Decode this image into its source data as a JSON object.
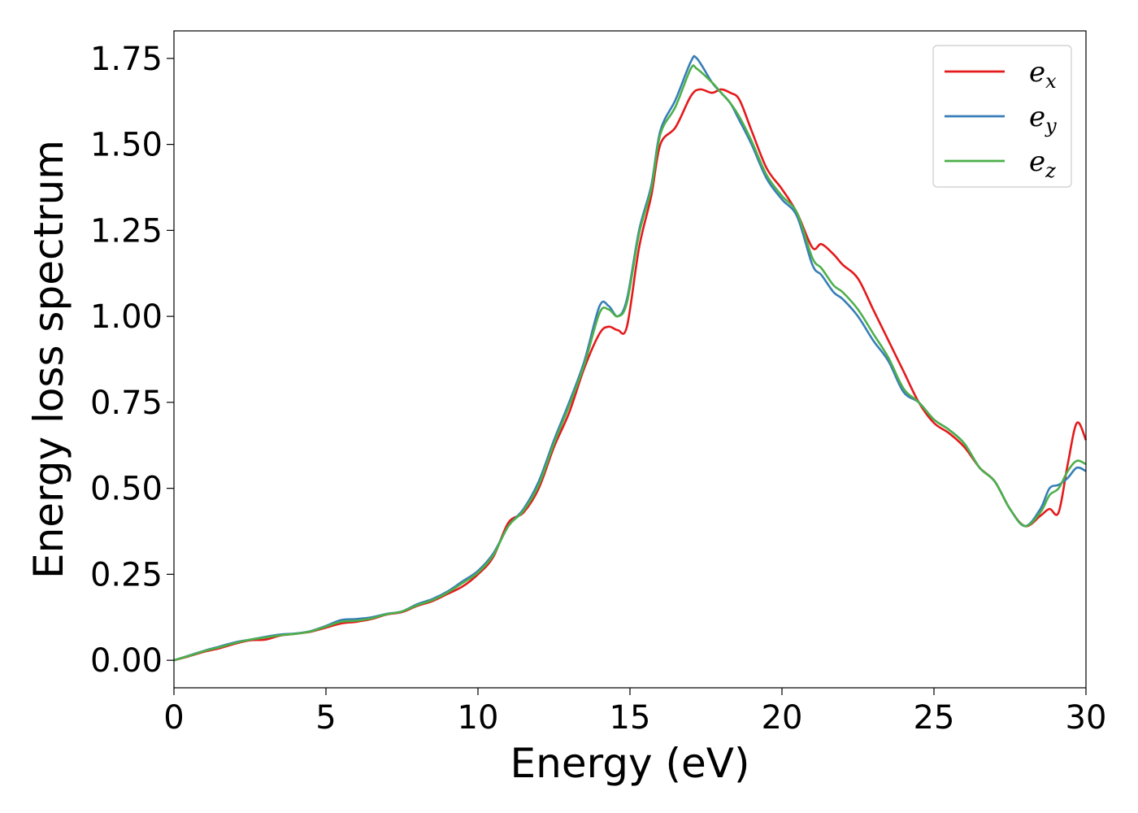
{
  "chart_data": {
    "type": "line",
    "xlabel": "Energy (eV)",
    "ylabel": "Energy loss spectrum",
    "xlim": [
      0,
      30
    ],
    "ylim": [
      -0.08,
      1.83
    ],
    "xticks": [
      "0",
      "5",
      "10",
      "15",
      "20",
      "25",
      "30"
    ],
    "yticks": [
      "0.00",
      "0.25",
      "0.50",
      "0.75",
      "1.00",
      "1.25",
      "1.50",
      "1.75"
    ],
    "grid": false,
    "legend_position": "top-right",
    "series": [
      {
        "name": "e",
        "subscript": "x",
        "color": "#e41a1c",
        "points": [
          [
            0,
            0
          ],
          [
            0.5,
            0.012
          ],
          [
            1,
            0.025
          ],
          [
            1.5,
            0.035
          ],
          [
            2,
            0.048
          ],
          [
            2.5,
            0.058
          ],
          [
            3,
            0.06
          ],
          [
            3.5,
            0.072
          ],
          [
            4,
            0.077
          ],
          [
            4.5,
            0.083
          ],
          [
            5,
            0.095
          ],
          [
            5.5,
            0.107
          ],
          [
            6,
            0.112
          ],
          [
            6.5,
            0.12
          ],
          [
            7,
            0.133
          ],
          [
            7.5,
            0.14
          ],
          [
            8,
            0.158
          ],
          [
            8.5,
            0.172
          ],
          [
            9,
            0.193
          ],
          [
            9.5,
            0.215
          ],
          [
            10,
            0.25
          ],
          [
            10.5,
            0.3
          ],
          [
            11,
            0.4
          ],
          [
            11.5,
            0.43
          ],
          [
            12,
            0.5
          ],
          [
            12.5,
            0.62
          ],
          [
            13,
            0.72
          ],
          [
            13.5,
            0.85
          ],
          [
            14,
            0.95
          ],
          [
            14.3,
            0.97
          ],
          [
            14.6,
            0.96
          ],
          [
            14.9,
            0.97
          ],
          [
            15.3,
            1.2
          ],
          [
            15.7,
            1.35
          ],
          [
            16,
            1.5
          ],
          [
            16.5,
            1.55
          ],
          [
            17,
            1.64
          ],
          [
            17.3,
            1.66
          ],
          [
            17.7,
            1.65
          ],
          [
            18,
            1.66
          ],
          [
            18.3,
            1.65
          ],
          [
            18.6,
            1.63
          ],
          [
            19,
            1.54
          ],
          [
            19.5,
            1.43
          ],
          [
            20,
            1.37
          ],
          [
            20.5,
            1.3
          ],
          [
            21,
            1.2
          ],
          [
            21.3,
            1.21
          ],
          [
            21.7,
            1.18
          ],
          [
            22,
            1.15
          ],
          [
            22.5,
            1.11
          ],
          [
            23,
            1.02
          ],
          [
            23.5,
            0.93
          ],
          [
            24,
            0.84
          ],
          [
            24.5,
            0.75
          ],
          [
            25,
            0.69
          ],
          [
            25.5,
            0.66
          ],
          [
            26,
            0.62
          ],
          [
            26.5,
            0.56
          ],
          [
            27,
            0.52
          ],
          [
            27.5,
            0.44
          ],
          [
            28,
            0.39
          ],
          [
            28.5,
            0.42
          ],
          [
            28.8,
            0.44
          ],
          [
            29.1,
            0.43
          ],
          [
            29.4,
            0.57
          ],
          [
            29.7,
            0.69
          ],
          [
            30,
            0.64
          ]
        ]
      },
      {
        "name": "e",
        "subscript": "y",
        "color": "#377eb8",
        "points": [
          [
            0,
            0
          ],
          [
            0.5,
            0.014
          ],
          [
            1,
            0.028
          ],
          [
            1.5,
            0.04
          ],
          [
            2,
            0.052
          ],
          [
            2.5,
            0.06
          ],
          [
            3,
            0.068
          ],
          [
            3.5,
            0.075
          ],
          [
            4,
            0.078
          ],
          [
            4.5,
            0.085
          ],
          [
            5,
            0.1
          ],
          [
            5.5,
            0.117
          ],
          [
            6,
            0.12
          ],
          [
            6.5,
            0.125
          ],
          [
            7,
            0.135
          ],
          [
            7.5,
            0.142
          ],
          [
            8,
            0.163
          ],
          [
            8.5,
            0.178
          ],
          [
            9,
            0.2
          ],
          [
            9.5,
            0.23
          ],
          [
            10,
            0.26
          ],
          [
            10.5,
            0.31
          ],
          [
            11,
            0.39
          ],
          [
            11.5,
            0.44
          ],
          [
            12,
            0.52
          ],
          [
            12.5,
            0.64
          ],
          [
            13,
            0.75
          ],
          [
            13.5,
            0.87
          ],
          [
            14,
            1.03
          ],
          [
            14.3,
            1.03
          ],
          [
            14.6,
            1.0
          ],
          [
            14.9,
            1.05
          ],
          [
            15.3,
            1.25
          ],
          [
            15.7,
            1.38
          ],
          [
            16,
            1.54
          ],
          [
            16.5,
            1.63
          ],
          [
            17,
            1.74
          ],
          [
            17.2,
            1.75
          ],
          [
            17.7,
            1.68
          ],
          [
            18,
            1.65
          ],
          [
            18.3,
            1.62
          ],
          [
            18.6,
            1.57
          ],
          [
            19,
            1.5
          ],
          [
            19.5,
            1.4
          ],
          [
            20,
            1.34
          ],
          [
            20.5,
            1.29
          ],
          [
            21,
            1.15
          ],
          [
            21.3,
            1.12
          ],
          [
            21.7,
            1.07
          ],
          [
            22,
            1.05
          ],
          [
            22.5,
            1.0
          ],
          [
            23,
            0.93
          ],
          [
            23.5,
            0.87
          ],
          [
            24,
            0.78
          ],
          [
            24.5,
            0.75
          ],
          [
            25,
            0.7
          ],
          [
            25.5,
            0.67
          ],
          [
            26,
            0.63
          ],
          [
            26.5,
            0.56
          ],
          [
            27,
            0.52
          ],
          [
            27.5,
            0.44
          ],
          [
            28,
            0.39
          ],
          [
            28.5,
            0.44
          ],
          [
            28.8,
            0.5
          ],
          [
            29.1,
            0.51
          ],
          [
            29.4,
            0.53
          ],
          [
            29.7,
            0.56
          ],
          [
            30,
            0.55
          ]
        ]
      },
      {
        "name": "e",
        "subscript": "z",
        "color": "#4daf4a",
        "points": [
          [
            0,
            0
          ],
          [
            0.5,
            0.013
          ],
          [
            1,
            0.027
          ],
          [
            1.5,
            0.038
          ],
          [
            2,
            0.05
          ],
          [
            2.5,
            0.06
          ],
          [
            3,
            0.066
          ],
          [
            3.5,
            0.073
          ],
          [
            4,
            0.077
          ],
          [
            4.5,
            0.084
          ],
          [
            5,
            0.098
          ],
          [
            5.5,
            0.112
          ],
          [
            6,
            0.115
          ],
          [
            6.5,
            0.122
          ],
          [
            7,
            0.134
          ],
          [
            7.5,
            0.142
          ],
          [
            8,
            0.16
          ],
          [
            8.5,
            0.175
          ],
          [
            9,
            0.197
          ],
          [
            9.5,
            0.225
          ],
          [
            10,
            0.255
          ],
          [
            10.5,
            0.305
          ],
          [
            11,
            0.39
          ],
          [
            11.5,
            0.435
          ],
          [
            12,
            0.51
          ],
          [
            12.5,
            0.63
          ],
          [
            13,
            0.74
          ],
          [
            13.5,
            0.86
          ],
          [
            14,
            1.01
          ],
          [
            14.3,
            1.02
          ],
          [
            14.6,
            1.0
          ],
          [
            14.9,
            1.04
          ],
          [
            15.3,
            1.24
          ],
          [
            15.7,
            1.37
          ],
          [
            16,
            1.53
          ],
          [
            16.5,
            1.61
          ],
          [
            17,
            1.72
          ],
          [
            17.2,
            1.72
          ],
          [
            17.7,
            1.68
          ],
          [
            18,
            1.65
          ],
          [
            18.3,
            1.62
          ],
          [
            18.6,
            1.58
          ],
          [
            19,
            1.51
          ],
          [
            19.5,
            1.41
          ],
          [
            20,
            1.35
          ],
          [
            20.5,
            1.3
          ],
          [
            21,
            1.17
          ],
          [
            21.3,
            1.14
          ],
          [
            21.7,
            1.09
          ],
          [
            22,
            1.07
          ],
          [
            22.5,
            1.02
          ],
          [
            23,
            0.95
          ],
          [
            23.5,
            0.88
          ],
          [
            24,
            0.79
          ],
          [
            24.5,
            0.75
          ],
          [
            25,
            0.7
          ],
          [
            25.5,
            0.67
          ],
          [
            26,
            0.63
          ],
          [
            26.5,
            0.56
          ],
          [
            27,
            0.52
          ],
          [
            27.5,
            0.44
          ],
          [
            28,
            0.39
          ],
          [
            28.5,
            0.43
          ],
          [
            28.8,
            0.48
          ],
          [
            29.1,
            0.5
          ],
          [
            29.4,
            0.55
          ],
          [
            29.7,
            0.58
          ],
          [
            30,
            0.57
          ]
        ]
      }
    ]
  }
}
